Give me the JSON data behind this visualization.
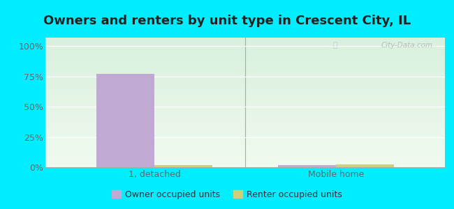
{
  "title": "Owners and renters by unit type in Crescent City, IL",
  "categories": [
    "1, detached",
    "Mobile home"
  ],
  "owner_values": [
    77.0,
    1.5
  ],
  "renter_values": [
    1.5,
    2.5
  ],
  "owner_color": "#c0aad4",
  "renter_color": "#cdd07a",
  "outer_bg": "#00eeff",
  "plot_bg_top": "#f0faf0",
  "plot_bg_bottom": "#d8f0dc",
  "yticks": [
    0,
    25,
    50,
    75,
    100
  ],
  "ytick_labels": [
    "0%",
    "25%",
    "50%",
    "75%",
    "100%"
  ],
  "ylim": [
    0,
    107
  ],
  "bar_width": 0.32,
  "watermark": "City-Data.com",
  "legend_owner": "Owner occupied units",
  "legend_renter": "Renter occupied units",
  "title_fontsize": 13,
  "tick_fontsize": 9,
  "legend_fontsize": 9,
  "title_color": "#222222",
  "tick_color": "#666666"
}
